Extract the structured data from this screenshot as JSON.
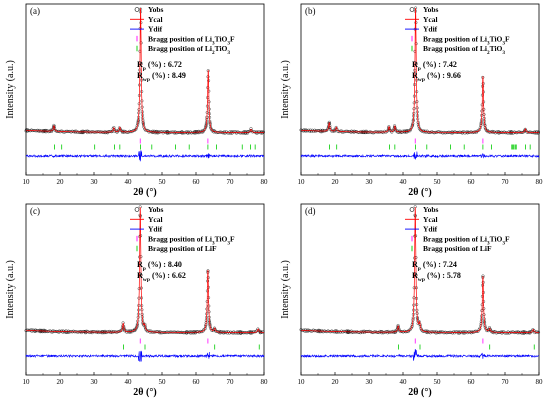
{
  "chart_data": [
    {
      "panel": "(a)",
      "type": "line",
      "xlabel": "2θ (°)",
      "ylabel": "Intensity (a.u.)",
      "xlim": [
        10,
        80
      ],
      "xticks": [
        "10",
        "20",
        "30",
        "40",
        "50",
        "60",
        "70",
        "80"
      ],
      "legend_position": "top-right",
      "legend": [
        "Yobs",
        "Ycal",
        "Ydif",
        "Bragg position of Li3TiO3F",
        "Bragg position of Li2TiO3"
      ],
      "series": [
        {
          "name": "Yobs",
          "marker": "open-circle",
          "color": "#000000",
          "peaks": [
            {
              "x": 18.2,
              "h": 0.045
            },
            {
              "x": 35.8,
              "h": 0.035
            },
            {
              "x": 37.6,
              "h": 0.04
            },
            {
              "x": 43.7,
              "h": 1.0
            },
            {
              "x": 63.6,
              "h": 0.5
            },
            {
              "x": 76.2,
              "h": 0.025
            }
          ]
        },
        {
          "name": "Ycal",
          "line": "solid",
          "color": "#ff0000"
        },
        {
          "name": "Ydif",
          "line": "solid",
          "color": "#0000ff"
        }
      ],
      "bragg": [
        {
          "name": "Bragg position of Li3TiO3F",
          "color": "#ff00ff",
          "positions": [
            43.6,
            63.5
          ]
        },
        {
          "name": "Bragg position of Li2TiO3",
          "color": "#00cc00",
          "positions": [
            18.4,
            20.5,
            30.2,
            36.0,
            37.6,
            43.7,
            47.0,
            54.0,
            58.0,
            63.5,
            66.0,
            73.6,
            76.0,
            77.4
          ]
        }
      ],
      "stats": {
        "rp": "6.72",
        "rwp": "8.49"
      }
    },
    {
      "panel": "(b)",
      "type": "line",
      "xlabel": "2θ (°)",
      "ylabel": "Intensity (a.u.)",
      "xlim": [
        10,
        80
      ],
      "xticks": [
        "10",
        "20",
        "30",
        "40",
        "50",
        "60",
        "70",
        "80"
      ],
      "legend_position": "top-right",
      "legend": [
        "Yobs",
        "Ycal",
        "Ydif",
        "Bragg position of Li3TiO3F",
        "Bragg position of Li2TiO3"
      ],
      "series": [
        {
          "name": "Yobs",
          "marker": "open-circle",
          "color": "#000000",
          "peaks": [
            {
              "x": 18.3,
              "h": 0.07
            },
            {
              "x": 20.4,
              "h": 0.035
            },
            {
              "x": 35.9,
              "h": 0.045
            },
            {
              "x": 37.6,
              "h": 0.05
            },
            {
              "x": 43.7,
              "h": 1.0
            },
            {
              "x": 63.5,
              "h": 0.45
            },
            {
              "x": 76.0,
              "h": 0.03
            }
          ]
        },
        {
          "name": "Ycal",
          "line": "solid",
          "color": "#ff0000"
        },
        {
          "name": "Ydif",
          "line": "solid",
          "color": "#0000ff"
        }
      ],
      "bragg": [
        {
          "name": "Bragg position of Li3TiO3F",
          "color": "#ff00ff",
          "positions": [
            43.6,
            63.5
          ]
        },
        {
          "name": "Bragg position of Li2TiO3",
          "color": "#00cc00",
          "positions": [
            18.4,
            20.5,
            36.0,
            37.6,
            43.7,
            47.0,
            54.0,
            58.0,
            63.5,
            66.0,
            72.0,
            72.3,
            72.6,
            73.0,
            73.3,
            76.0,
            77.4
          ]
        }
      ],
      "stats": {
        "rp": "7.42",
        "rwp": "9.66"
      }
    },
    {
      "panel": "(c)",
      "type": "line",
      "xlabel": "2θ (°)",
      "ylabel": "Intensity (a.u.)",
      "xlim": [
        10,
        80
      ],
      "xticks": [
        "10",
        "20",
        "30",
        "40",
        "50",
        "60",
        "70",
        "80"
      ],
      "legend_position": "top-right",
      "legend": [
        "Yobs",
        "Ycal",
        "Ydif",
        "Bragg position of Li3TiO3F",
        "Bragg position of LiF"
      ],
      "series": [
        {
          "name": "Yobs",
          "marker": "open-circle",
          "color": "#000000",
          "peaks": [
            {
              "x": 38.6,
              "h": 0.07
            },
            {
              "x": 43.6,
              "h": 1.0
            },
            {
              "x": 44.9,
              "h": 0.04
            },
            {
              "x": 63.5,
              "h": 0.5
            },
            {
              "x": 65.5,
              "h": 0.03
            },
            {
              "x": 78.3,
              "h": 0.03
            }
          ]
        },
        {
          "name": "Ycal",
          "line": "solid",
          "color": "#ff0000"
        },
        {
          "name": "Ydif",
          "line": "solid",
          "color": "#0000ff"
        }
      ],
      "bragg": [
        {
          "name": "Bragg position of Li3TiO3F",
          "color": "#ff00ff",
          "positions": [
            43.6,
            63.5
          ]
        },
        {
          "name": "Bragg position of LiF",
          "color": "#00cc00",
          "positions": [
            38.7,
            45.0,
            65.5,
            78.6
          ]
        }
      ],
      "stats": {
        "rp": "8.40",
        "rwp": "6.62"
      }
    },
    {
      "panel": "(d)",
      "type": "line",
      "xlabel": "2θ (°)",
      "ylabel": "Intensity (a.u.)",
      "xlim": [
        10,
        80
      ],
      "xticks": [
        "10",
        "20",
        "30",
        "40",
        "50",
        "60",
        "70",
        "80"
      ],
      "legend_position": "top-right",
      "legend": [
        "Yobs",
        "Ycal",
        "Ydif",
        "Bragg position of Li3TiO3F",
        "Bragg position of LiF"
      ],
      "series": [
        {
          "name": "Yobs",
          "marker": "open-circle",
          "color": "#000000",
          "peaks": [
            {
              "x": 38.6,
              "h": 0.05
            },
            {
              "x": 43.6,
              "h": 1.0
            },
            {
              "x": 44.9,
              "h": 0.06
            },
            {
              "x": 63.5,
              "h": 0.45
            },
            {
              "x": 65.5,
              "h": 0.03
            },
            {
              "x": 78.3,
              "h": 0.025
            }
          ]
        },
        {
          "name": "Ycal",
          "line": "solid",
          "color": "#ff0000"
        },
        {
          "name": "Ydif",
          "line": "solid",
          "color": "#0000ff"
        }
      ],
      "bragg": [
        {
          "name": "Bragg position of Li3TiO3F",
          "color": "#ff00ff",
          "positions": [
            43.6,
            63.5
          ]
        },
        {
          "name": "Bragg position of LiF",
          "color": "#00cc00",
          "positions": [
            38.7,
            45.0,
            65.5,
            78.6
          ]
        }
      ],
      "stats": {
        "rp": "7.24",
        "rwp": "5.78"
      }
    }
  ]
}
